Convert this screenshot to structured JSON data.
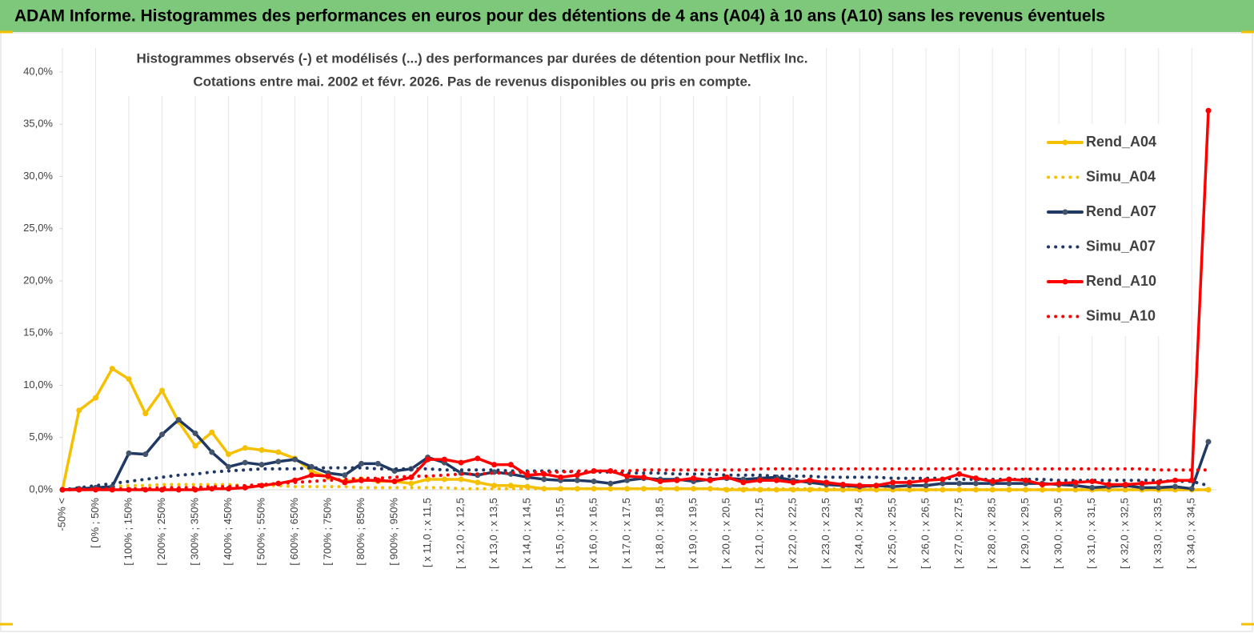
{
  "chart_data": {
    "type": "line",
    "header": "ADAM Informe. Histogrammes des performances en euros pour des détentions de 4 ans (A04) à 10 ans (A10) sans les revenus éventuels",
    "title": "Histogrammes observés (-) et modélisés (...) des performances par durées de détention pour Netflix Inc.",
    "subtitle": "Cotations entre mai. 2002 et févr. 2026. Pas de revenus disponibles ou pris en compte.",
    "categories": [
      "-50% <",
      null,
      "[ 0% ; 50%",
      null,
      "[ 100% ; 150%",
      null,
      "[ 200% ; 250%",
      null,
      "[ 300% ; 350%",
      null,
      "[ 400% ; 450%",
      null,
      "[ 500% ; 550%",
      null,
      "[ 600% ; 650%",
      null,
      "[ 700% ; 750%",
      null,
      "[ 800% ; 850%",
      null,
      "[ 900% ; 950%",
      null,
      "[ x 11,0 ; x 11,5",
      null,
      "[ x 12,0 ; x 12,5",
      null,
      "[ x 13,0 ; x 13,5",
      null,
      "[ x 14,0 ; x 14,5",
      null,
      "[ x 15,0 ; x 15,5",
      null,
      "[ x 16,0 ; x 16,5",
      null,
      "[ x 17,0 ; x 17,5",
      null,
      "[ x 18,0 ; x 18,5",
      null,
      "[ x 19,0 ; x 19,5",
      null,
      "[ x 20,0 ; x 20,5",
      null,
      "[ x 21,0 ; x 21,5",
      null,
      "[ x 22,0 ; x 22,5",
      null,
      "[ x 23,0 ; x 23,5",
      null,
      "[ x 24,0 ; x 24,5",
      null,
      "[ x 25,0 ; x 25,5",
      null,
      "[ x 26,0 ; x 26,5",
      null,
      "[ x 27,0 ; x 27,5",
      null,
      "[ x 28,0 ; x 28,5",
      null,
      "[ x 29,0 ; x 29,5",
      null,
      "[ x 30,0 ; x 30,5",
      null,
      "[ x 31,0 ; x 31,5",
      null,
      "[ x 32,0 ; x 32,5",
      null,
      "[ x 33,0 ; x 33,5",
      null,
      "[ x 34,0 ; x 34,5",
      null
    ],
    "ylim": [
      0,
      40
    ],
    "yticks": [
      {
        "value": 0,
        "label": "0,0%"
      },
      {
        "value": 5,
        "label": "5,0%"
      },
      {
        "value": 10,
        "label": "10,0%"
      },
      {
        "value": 15,
        "label": "15,0%"
      },
      {
        "value": 20,
        "label": "20,0%"
      },
      {
        "value": 25,
        "label": "25,0%"
      },
      {
        "value": 30,
        "label": "30,0%"
      },
      {
        "value": 35,
        "label": "35,0%"
      },
      {
        "value": 40,
        "label": "40,0%"
      }
    ],
    "series": [
      {
        "name": "Rend_A04",
        "color": "#f5c000",
        "style": "solid",
        "values": [
          0,
          7.6,
          8.8,
          11.6,
          10.6,
          7.3,
          9.5,
          6.5,
          4.2,
          5.5,
          3.4,
          4.0,
          3.8,
          3.6,
          3.0,
          1.8,
          1.2,
          0.8,
          1.0,
          0.8,
          0.8,
          0.6,
          1.0,
          1.0,
          1.0,
          0.7,
          0.4,
          0.4,
          0.3,
          0.1,
          0.1,
          0.1,
          0.1,
          0.1,
          0.1,
          0.1,
          0.1,
          0.1,
          0.1,
          0.1,
          0,
          0,
          0,
          0,
          0,
          0,
          0,
          0,
          0,
          0,
          0,
          0,
          0,
          0,
          0,
          0,
          0,
          0,
          0,
          0,
          0,
          0,
          0,
          0,
          0,
          0,
          0,
          0,
          0,
          0
        ]
      },
      {
        "name": "Simu_A04",
        "color": "#f5c000",
        "style": "dotted",
        "values": [
          0,
          0.1,
          0.2,
          0.3,
          0.4,
          0.4,
          0.5,
          0.5,
          0.5,
          0.5,
          0.5,
          0.4,
          0.4,
          0.4,
          0.3,
          0.3,
          0.3,
          0.3,
          0.2,
          0.2,
          0.2,
          0.2,
          0.2,
          0.2,
          0.1,
          0.1,
          0.1,
          0.1,
          0.1,
          0.1,
          0.1,
          0.1,
          0.1,
          0.1,
          0.1,
          0.1,
          0.1,
          0.1,
          0.1,
          0.1,
          0.1,
          0.1,
          0.1,
          0.1,
          0.1,
          0.1,
          0.1,
          0.1,
          0.1,
          0.1,
          0,
          0,
          0,
          0,
          0,
          0,
          0,
          0,
          0,
          0,
          0,
          0,
          0,
          0,
          0,
          0,
          0,
          0,
          0,
          0
        ]
      },
      {
        "name": "Rend_A07",
        "color": "#1f3864",
        "style": "solid",
        "values": [
          0,
          0.1,
          0.2,
          0.3,
          3.5,
          3.4,
          5.3,
          6.7,
          5.4,
          3.6,
          2.2,
          2.6,
          2.4,
          2.7,
          2.9,
          2.2,
          1.6,
          1.4,
          2.5,
          2.5,
          1.8,
          2.0,
          3.1,
          2.6,
          1.6,
          1.4,
          1.7,
          1.5,
          1.2,
          1.0,
          0.9,
          0.9,
          0.8,
          0.6,
          0.9,
          1.1,
          1.0,
          1.0,
          0.8,
          1.0,
          1.1,
          1.0,
          1.1,
          1.2,
          0.9,
          0.7,
          0.5,
          0.4,
          0.3,
          0.4,
          0.3,
          0.4,
          0.4,
          0.6,
          0.6,
          0.6,
          0.6,
          0.6,
          0.6,
          0.6,
          0.5,
          0.4,
          0.2,
          0.3,
          0.4,
          0.2,
          0.2,
          0.3,
          0.1,
          4.6
        ]
      },
      {
        "name": "Simu_A07",
        "color": "#1f3864",
        "style": "dotted",
        "values": [
          0,
          0.2,
          0.4,
          0.6,
          0.8,
          1.0,
          1.2,
          1.4,
          1.5,
          1.7,
          1.8,
          1.9,
          2.0,
          2.0,
          2.0,
          2.1,
          2.1,
          2.1,
          2.1,
          2.0,
          2.0,
          2.0,
          2.0,
          1.9,
          1.9,
          1.9,
          1.9,
          1.8,
          1.8,
          1.8,
          1.8,
          1.7,
          1.7,
          1.7,
          1.6,
          1.6,
          1.6,
          1.5,
          1.5,
          1.5,
          1.4,
          1.4,
          1.4,
          1.3,
          1.3,
          1.3,
          1.2,
          1.2,
          1.2,
          1.2,
          1.1,
          1.1,
          1.1,
          1.1,
          1.0,
          1.0,
          1.0,
          1.0,
          1.0,
          1.0,
          0.9,
          0.9,
          0.9,
          0.9,
          0.9,
          0.9,
          0.9,
          0.8,
          0.8,
          0.4
        ]
      },
      {
        "name": "Rend_A10",
        "color": "#ff0000",
        "style": "solid",
        "values": [
          0,
          0,
          0,
          0,
          0,
          0,
          0,
          0,
          0,
          0.1,
          0.1,
          0.2,
          0.4,
          0.6,
          0.9,
          1.4,
          1.3,
          0.7,
          0.9,
          0.9,
          0.8,
          1.2,
          2.9,
          2.9,
          2.6,
          3.0,
          2.4,
          2.4,
          1.4,
          1.5,
          1.2,
          1.4,
          1.8,
          1.8,
          1.3,
          1.2,
          0.8,
          0.9,
          1.1,
          0.9,
          1.2,
          0.7,
          0.9,
          0.9,
          0.7,
          0.9,
          0.7,
          0.5,
          0.4,
          0.4,
          0.7,
          0.7,
          0.9,
          1.0,
          1.5,
          1.1,
          0.8,
          1.0,
          0.9,
          0.5,
          0.6,
          0.7,
          0.8,
          0.5,
          0.5,
          0.6,
          0.7,
          0.9,
          0.9,
          36.3
        ]
      },
      {
        "name": "Simu_A10",
        "color": "#ff0000",
        "style": "dotted",
        "values": [
          0,
          0,
          0.1,
          0.1,
          0.1,
          0.1,
          0.2,
          0.2,
          0.2,
          0.3,
          0.3,
          0.4,
          0.5,
          0.6,
          0.7,
          0.8,
          0.9,
          1.0,
          1.1,
          1.1,
          1.2,
          1.3,
          1.3,
          1.4,
          1.5,
          1.5,
          1.6,
          1.6,
          1.7,
          1.7,
          1.7,
          1.8,
          1.8,
          1.8,
          1.8,
          1.9,
          1.9,
          1.9,
          1.9,
          1.9,
          1.9,
          1.9,
          2.0,
          2.0,
          2.0,
          2.0,
          2.0,
          2.0,
          2.0,
          2.0,
          2.0,
          2.0,
          2.0,
          2.0,
          2.0,
          2.0,
          2.0,
          2.0,
          2.0,
          2.0,
          2.0,
          2.0,
          2.0,
          2.0,
          2.0,
          2.0,
          1.9,
          1.9,
          1.9,
          1.9
        ]
      }
    ]
  }
}
